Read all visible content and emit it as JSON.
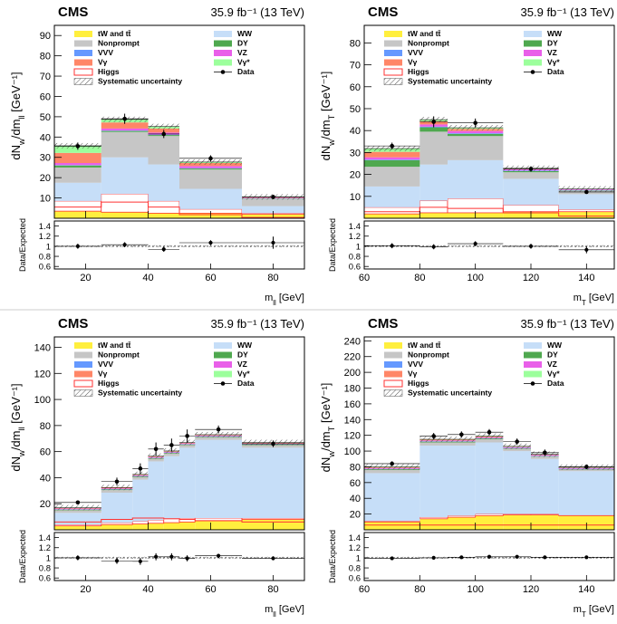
{
  "figure": {
    "experiment_label": "CMS",
    "luminosity_label": "35.9 fb⁻¹ (13 TeV)",
    "ratio_ylabel": "Data/Expected",
    "colors": {
      "tW": "#ffef3e",
      "Nonprompt": "#c6c6c6",
      "VVV": "#6599ff",
      "Vgamma": "#ff8667",
      "Higgs": "#ff3333",
      "WW": "#c6def8",
      "DY": "#4fa84f",
      "VZ": "#e95fe9",
      "VgammaStar": "#9cff9c",
      "Data": "#000000"
    }
  },
  "chart_data": [
    {
      "type": "bar",
      "xlabel": "m_ll [GeV]",
      "ylabel": "dN_w/dm_ll [GeV⁻¹]",
      "xlim": [
        10,
        90
      ],
      "ylim": [
        0,
        95
      ],
      "xticks": [
        20,
        40,
        60,
        80
      ],
      "yticks": [
        10,
        20,
        30,
        40,
        50,
        60,
        70,
        80,
        90
      ],
      "ratio_ylim": [
        0.55,
        1.5
      ],
      "ratio_yticks": [
        0.6,
        0.8,
        1,
        1.2,
        1.4
      ],
      "bin_edges": [
        10,
        25,
        40,
        50,
        70,
        90
      ],
      "legend": [
        {
          "key": "tW",
          "label": "tW and tt̄",
          "style": "fill"
        },
        {
          "key": "WW",
          "label": "WW",
          "style": "fill"
        },
        {
          "key": "Nonprompt",
          "label": "Nonprompt",
          "style": "fill"
        },
        {
          "key": "DY",
          "label": "DY",
          "style": "fill"
        },
        {
          "key": "VVV",
          "label": "VVV",
          "style": "fill"
        },
        {
          "key": "VZ",
          "label": "VZ",
          "style": "fill"
        },
        {
          "key": "Vgamma",
          "label": "Vγ",
          "style": "fill"
        },
        {
          "key": "VgammaStar",
          "label": "Vγ*",
          "style": "fill"
        },
        {
          "key": "Higgs",
          "label": "Higgs",
          "style": "line"
        },
        {
          "key": "Data",
          "label": "Data",
          "style": "marker"
        },
        {
          "key": "Syst",
          "label": "Systematic uncertainty",
          "style": "hatch"
        }
      ],
      "series": [
        {
          "key": "tW",
          "values": [
            3.5,
            3.0,
            2.5,
            2.5,
            2.0
          ]
        },
        {
          "key": "WW",
          "values": [
            9.0,
            18.0,
            18.0,
            10.0,
            3.5
          ]
        },
        {
          "key": "Nonprompt",
          "values": [
            7.5,
            12.5,
            14.0,
            9.5,
            3.5
          ]
        },
        {
          "key": "DY",
          "values": [
            1.0,
            0.5,
            0.5,
            0.5,
            0.2
          ]
        },
        {
          "key": "VVV",
          "values": [
            0.2,
            0.2,
            0.2,
            0.2,
            0.1
          ]
        },
        {
          "key": "VZ",
          "values": [
            1.0,
            1.0,
            1.0,
            1.0,
            0.3
          ]
        },
        {
          "key": "Vgamma",
          "values": [
            5.0,
            3.0,
            2.0,
            1.5,
            0.3
          ]
        },
        {
          "key": "VgammaStar",
          "values": [
            3.5,
            1.5,
            1.0,
            0.5,
            0.1
          ]
        },
        {
          "key": "Higgs",
          "values": [
            5.0,
            9.0,
            6.0,
            2.0,
            0.5
          ]
        }
      ],
      "higgs_curve": [
        5.5,
        8.0,
        5.5,
        1.8,
        0.4
      ],
      "data": {
        "x": [
          17.5,
          32.5,
          45,
          60,
          80
        ],
        "y": [
          35.5,
          49.0,
          41.5,
          29.5,
          10.5
        ],
        "yerr": [
          1.8,
          2.5,
          2.0,
          1.5,
          1.0
        ]
      },
      "ratio": {
        "y": [
          1.0,
          1.03,
          0.94,
          1.07,
          1.07
        ],
        "yerr": [
          0.05,
          0.05,
          0.05,
          0.05,
          0.12
        ]
      }
    },
    {
      "type": "bar",
      "xlabel": "m_T [GeV]",
      "ylabel": "dN_w/dm_T [GeV⁻¹]",
      "xlim": [
        60,
        150
      ],
      "ylim": [
        0,
        88
      ],
      "xticks": [
        60,
        80,
        100,
        120,
        140
      ],
      "yticks": [
        10,
        20,
        30,
        40,
        50,
        60,
        70,
        80
      ],
      "ratio_ylim": [
        0.55,
        1.5
      ],
      "ratio_yticks": [
        0.6,
        0.8,
        1,
        1.2,
        1.4
      ],
      "bin_edges": [
        60,
        80,
        90,
        110,
        130,
        150
      ],
      "legend": [
        {
          "key": "tW",
          "label": "tW and tt̄",
          "style": "fill"
        },
        {
          "key": "WW",
          "label": "WW",
          "style": "fill"
        },
        {
          "key": "Nonprompt",
          "label": "Nonprompt",
          "style": "fill"
        },
        {
          "key": "DY",
          "label": "DY",
          "style": "fill"
        },
        {
          "key": "VVV",
          "label": "VVV",
          "style": "fill"
        },
        {
          "key": "VZ",
          "label": "VZ",
          "style": "fill"
        },
        {
          "key": "Vgamma",
          "label": "Vγ",
          "style": "fill"
        },
        {
          "key": "VgammaStar",
          "label": "Vγ*",
          "style": "fill"
        },
        {
          "key": "Higgs",
          "label": "Higgs",
          "style": "line"
        },
        {
          "key": "Data",
          "label": "Data",
          "style": "marker"
        },
        {
          "key": "Syst",
          "label": "Systematic uncertainty",
          "style": "hatch"
        }
      ],
      "series": [
        {
          "key": "tW",
          "values": [
            2.0,
            2.5,
            2.5,
            3.0,
            3.0
          ]
        },
        {
          "key": "WW",
          "values": [
            9.5,
            16.5,
            17.5,
            12.0,
            7.0
          ]
        },
        {
          "key": "Nonprompt",
          "values": [
            9.0,
            15.0,
            11.0,
            3.0,
            1.5
          ]
        },
        {
          "key": "DY",
          "values": [
            3.0,
            2.0,
            1.0,
            0.5,
            0.2
          ]
        },
        {
          "key": "VVV",
          "values": [
            0.3,
            0.3,
            0.3,
            0.3,
            0.2
          ]
        },
        {
          "key": "VZ",
          "values": [
            1.0,
            1.0,
            1.0,
            0.5,
            0.3
          ]
        },
        {
          "key": "Vgamma",
          "values": [
            2.5,
            1.5,
            1.0,
            0.3,
            0.1
          ]
        },
        {
          "key": "VgammaStar",
          "values": [
            1.5,
            0.7,
            0.5,
            0.2,
            0.1
          ]
        },
        {
          "key": "Higgs",
          "values": [
            3.0,
            5.5,
            6.5,
            3.0,
            1.0
          ]
        }
      ],
      "higgs_curve": [
        3.0,
        5.0,
        4.5,
        2.5,
        1.0
      ],
      "data": {
        "x": [
          70,
          85,
          100,
          120,
          140
        ],
        "y": [
          33.0,
          44.0,
          43.5,
          22.5,
          12.0
        ],
        "yerr": [
          1.5,
          2.5,
          2.0,
          1.2,
          0.8
        ]
      },
      "ratio": {
        "y": [
          1.01,
          0.99,
          1.05,
          1.0,
          0.93
        ],
        "yerr": [
          0.05,
          0.05,
          0.05,
          0.05,
          0.07
        ]
      }
    },
    {
      "type": "bar",
      "xlabel": "m_ll [GeV]",
      "ylabel": "dN_w/dm_ll [GeV⁻¹]",
      "xlim": [
        10,
        90
      ],
      "ylim": [
        0,
        148
      ],
      "xticks": [
        20,
        40,
        60,
        80
      ],
      "yticks": [
        20,
        40,
        60,
        80,
        100,
        120,
        140
      ],
      "ratio_ylim": [
        0.55,
        1.5
      ],
      "ratio_yticks": [
        0.6,
        0.8,
        1,
        1.2,
        1.4
      ],
      "bin_edges": [
        10,
        25,
        35,
        40,
        45,
        50,
        55,
        70,
        90
      ],
      "legend": [
        {
          "key": "tW",
          "label": "tW and tt̄",
          "style": "fill"
        },
        {
          "key": "WW",
          "label": "WW",
          "style": "fill"
        },
        {
          "key": "Nonprompt",
          "label": "Nonprompt",
          "style": "fill"
        },
        {
          "key": "DY",
          "label": "DY",
          "style": "fill"
        },
        {
          "key": "VVV",
          "label": "VVV",
          "style": "fill"
        },
        {
          "key": "VZ",
          "label": "VZ",
          "style": "fill"
        },
        {
          "key": "Vgamma",
          "label": "Vγ",
          "style": "fill"
        },
        {
          "key": "VgammaStar",
          "label": "Vγ*",
          "style": "fill"
        },
        {
          "key": "Higgs",
          "label": "Higgs",
          "style": "line"
        },
        {
          "key": "Data",
          "label": "Data",
          "style": "marker"
        },
        {
          "key": "Syst",
          "label": "Systematic uncertainty",
          "style": "hatch"
        }
      ],
      "series": [
        {
          "key": "tW",
          "values": [
            3.0,
            4.0,
            4.5,
            5.0,
            5.5,
            6.0,
            7.0,
            8.0
          ]
        },
        {
          "key": "WW",
          "values": [
            9.0,
            23.0,
            32.0,
            45.0,
            48.0,
            54.0,
            60.0,
            54.0
          ]
        },
        {
          "key": "Nonprompt",
          "values": [
            2.0,
            2.0,
            2.0,
            2.0,
            2.0,
            2.0,
            2.0,
            2.0
          ]
        },
        {
          "key": "DY",
          "values": [
            0.5,
            0.5,
            0.5,
            0.5,
            0.5,
            0.5,
            0.5,
            0.5
          ]
        },
        {
          "key": "VVV",
          "values": [
            0.3,
            0.3,
            0.3,
            0.3,
            0.3,
            0.3,
            0.3,
            0.3
          ]
        },
        {
          "key": "VZ",
          "values": [
            0.5,
            0.5,
            0.5,
            0.5,
            0.5,
            0.5,
            0.5,
            0.5
          ]
        },
        {
          "key": "Vgamma",
          "values": [
            0.5,
            0.5,
            0.5,
            0.5,
            0.5,
            0.5,
            0.5,
            0.5
          ]
        },
        {
          "key": "VgammaStar",
          "values": [
            0.2,
            0.2,
            0.2,
            0.2,
            0.2,
            0.2,
            0.2,
            0.2
          ]
        },
        {
          "key": "Higgs",
          "values": [
            1.0,
            1.5,
            2.0,
            2.5,
            3.0,
            3.0,
            2.0,
            1.0
          ]
        }
      ],
      "higgs_curve": [
        6.0,
        8.0,
        9.0,
        9.0,
        8.5,
        8.0,
        7.0,
        6.0
      ],
      "data": {
        "x": [
          17.5,
          30,
          37.5,
          42.5,
          47.5,
          52.5,
          62.5,
          80
        ],
        "y": [
          21.0,
          37.0,
          47.0,
          62.0,
          65.0,
          72.0,
          77.0,
          66.0
        ],
        "yerr": [
          1.5,
          3.0,
          4.0,
          5.0,
          5.0,
          5.0,
          3.0,
          2.5
        ]
      },
      "ratio": {
        "y": [
          1.0,
          0.94,
          0.93,
          1.02,
          1.02,
          0.99,
          1.04,
          0.99
        ],
        "yerr": [
          0.05,
          0.06,
          0.07,
          0.07,
          0.07,
          0.06,
          0.04,
          0.04
        ]
      }
    },
    {
      "type": "bar",
      "xlabel": "m_T [GeV]",
      "ylabel": "dN_w/dm_T [GeV⁻¹]",
      "xlim": [
        60,
        150
      ],
      "ylim": [
        0,
        245
      ],
      "xticks": [
        60,
        80,
        100,
        120,
        140
      ],
      "yticks": [
        20,
        40,
        60,
        80,
        100,
        120,
        140,
        160,
        180,
        200,
        220,
        240
      ],
      "ratio_ylim": [
        0.55,
        1.5
      ],
      "ratio_yticks": [
        0.6,
        0.8,
        1,
        1.2,
        1.4
      ],
      "bin_edges": [
        60,
        80,
        90,
        100,
        110,
        120,
        130,
        150
      ],
      "legend": [
        {
          "key": "tW",
          "label": "tW and tt̄",
          "style": "fill"
        },
        {
          "key": "WW",
          "label": "WW",
          "style": "fill"
        },
        {
          "key": "Nonprompt",
          "label": "Nonprompt",
          "style": "fill"
        },
        {
          "key": "DY",
          "label": "DY",
          "style": "fill"
        },
        {
          "key": "VVV",
          "label": "VVV",
          "style": "fill"
        },
        {
          "key": "VZ",
          "label": "VZ",
          "style": "fill"
        },
        {
          "key": "Vgamma",
          "label": "Vγ",
          "style": "fill"
        },
        {
          "key": "VgammaStar",
          "label": "Vγ*",
          "style": "fill"
        },
        {
          "key": "Higgs",
          "label": "Higgs",
          "style": "line"
        },
        {
          "key": "Data",
          "label": "Data",
          "style": "marker"
        },
        {
          "key": "Syst",
          "label": "Systematic uncertainty",
          "style": "hatch"
        }
      ],
      "series": [
        {
          "key": "tW",
          "values": [
            10.0,
            14.0,
            16.0,
            18.0,
            19.0,
            19.0,
            18.0
          ]
        },
        {
          "key": "WW",
          "values": [
            61.0,
            91.0,
            89.0,
            91.0,
            80.0,
            70.0,
            56.0
          ]
        },
        {
          "key": "Nonprompt",
          "values": [
            4.0,
            4.0,
            4.0,
            4.0,
            3.0,
            3.0,
            2.0
          ]
        },
        {
          "key": "DY",
          "values": [
            1.0,
            1.0,
            1.0,
            1.0,
            0.5,
            0.5,
            0.5
          ]
        },
        {
          "key": "VVV",
          "values": [
            0.5,
            0.5,
            0.5,
            0.5,
            0.5,
            0.5,
            0.5
          ]
        },
        {
          "key": "VZ",
          "values": [
            1.0,
            1.0,
            1.0,
            1.0,
            1.0,
            1.0,
            1.0
          ]
        },
        {
          "key": "Vgamma",
          "values": [
            1.0,
            1.0,
            1.0,
            1.0,
            0.5,
            0.5,
            0.5
          ]
        },
        {
          "key": "VgammaStar",
          "values": [
            0.5,
            0.5,
            0.5,
            0.5,
            0.5,
            0.5,
            0.5
          ]
        },
        {
          "key": "Higgs",
          "values": [
            1.0,
            2.0,
            2.0,
            2.0,
            1.0,
            1.0,
            0.5
          ]
        }
      ],
      "higgs_curve": [
        6.0,
        6.0,
        6.0,
        6.0,
        6.0,
        6.0,
        6.0
      ],
      "data": {
        "x": [
          70,
          85,
          95,
          105,
          115,
          125,
          140
        ],
        "y": [
          84.0,
          119.0,
          121.0,
          124.0,
          112.0,
          98.0,
          80.0
        ],
        "yerr": [
          3.0,
          4.0,
          4.0,
          4.0,
          4.0,
          4.0,
          3.0
        ]
      },
      "ratio": {
        "y": [
          0.99,
          1.0,
          1.01,
          1.02,
          1.02,
          1.01,
          1.01
        ],
        "yerr": [
          0.03,
          0.03,
          0.03,
          0.03,
          0.03,
          0.03,
          0.03
        ]
      }
    }
  ]
}
